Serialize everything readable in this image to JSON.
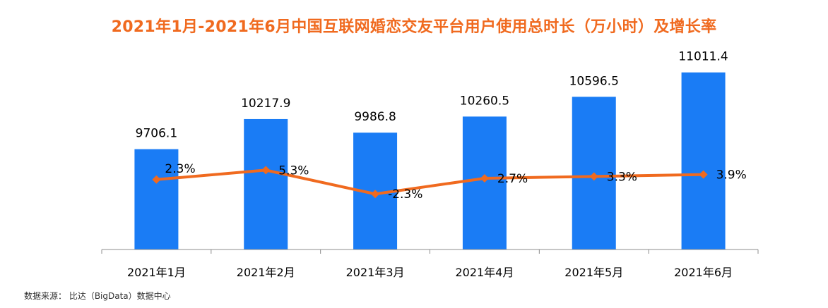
{
  "title": "2021年1月-2021年6月中国互联网婚恋交友平台用户使用总时长（万小时）及增长率",
  "source": "数据来源： 比达（BigData）数据中心",
  "colors": {
    "title": "#F06A1F",
    "bar": "#1A7CF5",
    "line": "#F06A1F",
    "axis": "#8C8C8C",
    "text": "#000000"
  },
  "chart_data": {
    "type": "bar",
    "categories": [
      "2021年1月",
      "2021年2月",
      "2021年3月",
      "2021年4月",
      "2021年5月",
      "2021年6月"
    ],
    "series": [
      {
        "type": "bar",
        "values": [
          9706.1,
          10217.9,
          9986.8,
          10260.5,
          10596.5,
          11011.4
        ],
        "labels": [
          "9706.1",
          "10217.9",
          "9986.8",
          "10260.5",
          "10596.5",
          "11011.4"
        ]
      },
      {
        "type": "line",
        "values": [
          2.3,
          5.3,
          -2.3,
          2.7,
          3.3,
          3.9
        ],
        "labels": [
          "2.3%",
          "5.3%",
          "-2.3%",
          "2.7%",
          "3.3%",
          "3.9%"
        ]
      }
    ],
    "ylim": [
      8000,
      11200
    ],
    "y2lim": [
      -20,
      40
    ],
    "grid": false,
    "legend": "none"
  }
}
